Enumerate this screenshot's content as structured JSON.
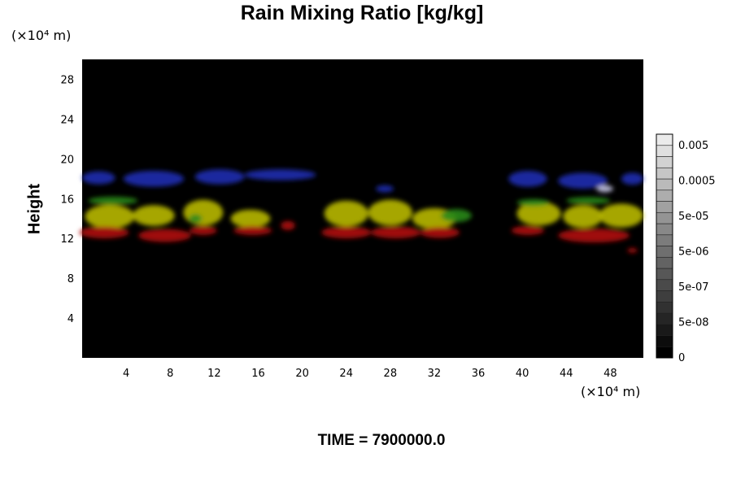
{
  "chart_data": {
    "type": "heatmap",
    "title": "Rain Mixing Ratio [kg/kg]",
    "ylabel": "Height",
    "x_unit": "(×10⁴ m)",
    "y_unit": "(×10⁴ m)",
    "footer": "TIME = 7900000.0",
    "xlim": [
      0,
      51
    ],
    "ylim": [
      0,
      30
    ],
    "x_ticks": [
      4,
      8,
      12,
      16,
      20,
      24,
      28,
      32,
      36,
      40,
      44,
      48
    ],
    "y_ticks": [
      4,
      8,
      12,
      16,
      20,
      24,
      28
    ],
    "x_tick_labels": [
      "4",
      "8",
      "12",
      "16",
      "20",
      "24",
      "28",
      "32",
      "36",
      "40",
      "44",
      "48"
    ],
    "y_tick_labels": [
      "4",
      "8",
      "12",
      "16",
      "20",
      "24",
      "28"
    ],
    "background_color": "#000000",
    "colorbar": {
      "labels": [
        "0.005",
        "0.0005",
        "5e-05",
        "5e-06",
        "5e-07",
        "5e-08",
        "0"
      ],
      "levels": 20
    },
    "layers": [
      {
        "color": "#1e2fb0",
        "blobs": [
          {
            "x": 1.5,
            "y": 18.1,
            "w": 3.0,
            "h": 1.3
          },
          {
            "x": 6.5,
            "y": 18.0,
            "w": 5.5,
            "h": 1.6
          },
          {
            "x": 12.5,
            "y": 18.2,
            "w": 4.5,
            "h": 1.5
          },
          {
            "x": 18.0,
            "y": 18.4,
            "w": 6.5,
            "h": 1.1
          },
          {
            "x": 27.5,
            "y": 17.0,
            "w": 1.6,
            "h": 0.7
          },
          {
            "x": 40.5,
            "y": 18.0,
            "w": 3.5,
            "h": 1.6
          },
          {
            "x": 45.5,
            "y": 17.8,
            "w": 4.5,
            "h": 1.6
          },
          {
            "x": 50.0,
            "y": 18.0,
            "w": 2.0,
            "h": 1.2
          }
        ]
      },
      {
        "color": "#b8b800",
        "blobs": [
          {
            "x": 2.5,
            "y": 14.2,
            "w": 4.5,
            "h": 2.4
          },
          {
            "x": 6.5,
            "y": 14.3,
            "w": 3.8,
            "h": 2.1
          },
          {
            "x": 11.0,
            "y": 14.6,
            "w": 3.6,
            "h": 2.6
          },
          {
            "x": 15.3,
            "y": 14.0,
            "w": 3.6,
            "h": 1.8
          },
          {
            "x": 24.0,
            "y": 14.5,
            "w": 4.0,
            "h": 2.6
          },
          {
            "x": 28.0,
            "y": 14.6,
            "w": 4.0,
            "h": 2.6
          },
          {
            "x": 32.0,
            "y": 14.0,
            "w": 4.0,
            "h": 2.1
          },
          {
            "x": 41.5,
            "y": 14.5,
            "w": 4.0,
            "h": 2.4
          },
          {
            "x": 45.5,
            "y": 14.2,
            "w": 3.6,
            "h": 2.3
          },
          {
            "x": 49.0,
            "y": 14.3,
            "w": 4.0,
            "h": 2.4
          }
        ]
      },
      {
        "color": "#2a8a1a",
        "blobs": [
          {
            "x": 2.8,
            "y": 15.8,
            "w": 4.5,
            "h": 0.8
          },
          {
            "x": 10.3,
            "y": 14.0,
            "w": 1.2,
            "h": 0.9
          },
          {
            "x": 34.0,
            "y": 14.3,
            "w": 2.8,
            "h": 1.3
          },
          {
            "x": 41.0,
            "y": 15.6,
            "w": 3.0,
            "h": 0.7
          },
          {
            "x": 46.0,
            "y": 15.8,
            "w": 4.0,
            "h": 0.7
          }
        ]
      },
      {
        "color": "#b01010",
        "blobs": [
          {
            "x": 2.0,
            "y": 12.6,
            "w": 4.5,
            "h": 1.2
          },
          {
            "x": 7.5,
            "y": 12.3,
            "w": 4.8,
            "h": 1.3
          },
          {
            "x": 11.0,
            "y": 12.8,
            "w": 2.5,
            "h": 0.9
          },
          {
            "x": 15.5,
            "y": 12.8,
            "w": 3.5,
            "h": 0.9
          },
          {
            "x": 18.7,
            "y": 13.3,
            "w": 1.3,
            "h": 0.9
          },
          {
            "x": 24.0,
            "y": 12.6,
            "w": 4.5,
            "h": 1.2
          },
          {
            "x": 28.5,
            "y": 12.6,
            "w": 4.5,
            "h": 1.2
          },
          {
            "x": 32.5,
            "y": 12.6,
            "w": 3.6,
            "h": 1.1
          },
          {
            "x": 40.5,
            "y": 12.8,
            "w": 3.0,
            "h": 0.9
          },
          {
            "x": 46.5,
            "y": 12.3,
            "w": 6.5,
            "h": 1.4
          },
          {
            "x": 50.0,
            "y": 10.8,
            "w": 0.9,
            "h": 0.5
          }
        ]
      },
      {
        "color": "#c8c8e8",
        "blobs": [
          {
            "x": 47.5,
            "y": 17.0,
            "w": 1.5,
            "h": 0.7
          }
        ]
      }
    ]
  }
}
